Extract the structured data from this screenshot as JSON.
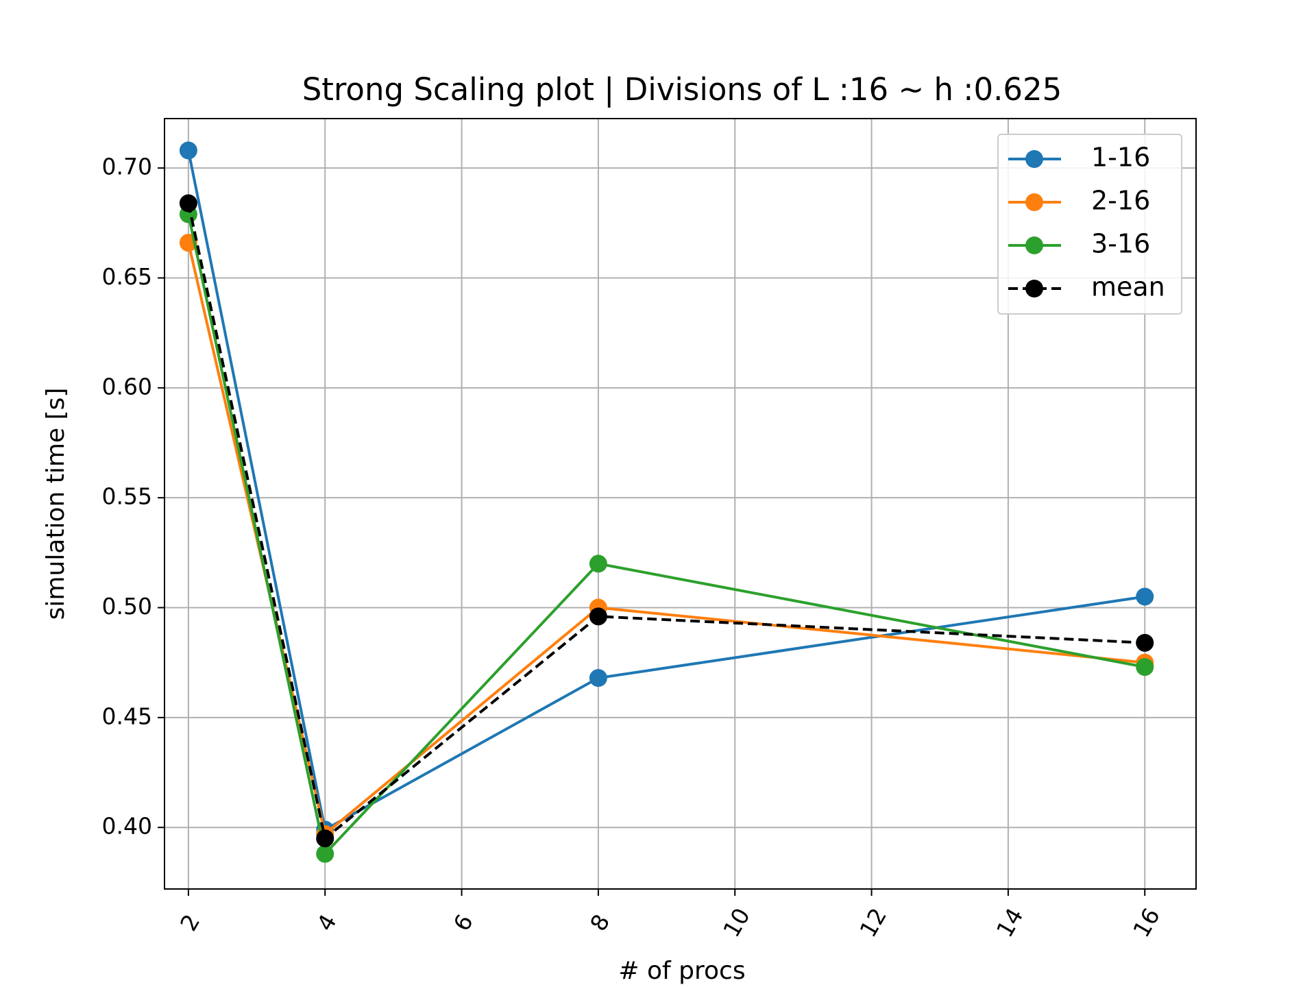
{
  "chart_data": {
    "type": "line",
    "title": "Strong Scaling plot | Divisions of L :16 ~ h :0.625",
    "xlabel": "# of procs",
    "ylabel": "simulation time [s]",
    "xlim": [
      1.65,
      16.75
    ],
    "ylim": [
      0.372,
      0.7225
    ],
    "x_ticks": [
      2,
      4,
      6,
      8,
      10,
      12,
      14,
      16
    ],
    "y_ticks": [
      0.4,
      0.45,
      0.5,
      0.55,
      0.6,
      0.65,
      0.7
    ],
    "y_tick_labels": [
      "0.40",
      "0.45",
      "0.50",
      "0.55",
      "0.60",
      "0.65",
      "0.70"
    ],
    "x_tick_rotation": 60,
    "grid": true,
    "legend_position": "top-right",
    "x": [
      2,
      4,
      8,
      16
    ],
    "series": [
      {
        "name": "1-16",
        "values": [
          0.708,
          0.399,
          0.468,
          0.505
        ],
        "color": "#1f77b4",
        "dashed": false
      },
      {
        "name": "2-16",
        "values": [
          0.666,
          0.397,
          0.5,
          0.475
        ],
        "color": "#ff7f0e",
        "dashed": false
      },
      {
        "name": "3-16",
        "values": [
          0.679,
          0.388,
          0.52,
          0.473
        ],
        "color": "#2ca02c",
        "dashed": false
      },
      {
        "name": "mean",
        "values": [
          0.684,
          0.395,
          0.496,
          0.484
        ],
        "color": "#000000",
        "dashed": true
      }
    ]
  }
}
